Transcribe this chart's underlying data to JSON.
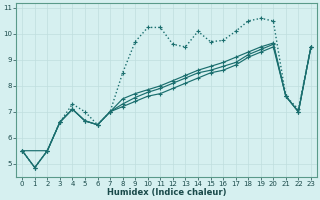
{
  "xlabel": "Humidex (Indice chaleur)",
  "bg_color": "#d6f0f0",
  "line_color": "#1a6e6e",
  "grid_color": "#c0dede",
  "xlim": [
    -0.5,
    23.5
  ],
  "ylim": [
    4.5,
    11.2
  ],
  "xticks": [
    0,
    1,
    2,
    3,
    4,
    5,
    6,
    7,
    8,
    9,
    10,
    11,
    12,
    13,
    14,
    15,
    16,
    17,
    18,
    19,
    20,
    21,
    22,
    23
  ],
  "yticks": [
    5,
    6,
    7,
    8,
    9,
    10,
    11
  ],
  "series": [
    {
      "x": [
        0,
        1,
        2,
        3,
        4,
        5,
        6,
        7,
        8,
        9,
        10,
        11,
        12,
        13,
        14,
        15,
        16,
        17,
        18,
        19,
        20,
        21,
        22,
        23
      ],
      "y": [
        5.5,
        4.85,
        5.5,
        6.6,
        7.3,
        7.0,
        6.5,
        7.0,
        8.5,
        9.7,
        10.25,
        10.25,
        9.6,
        9.5,
        10.1,
        9.7,
        9.75,
        10.1,
        10.5,
        10.6,
        10.5,
        7.6,
        7.1,
        9.5
      ],
      "style": "dotted",
      "linewidth": 1.0
    },
    {
      "x": [
        0,
        1,
        2,
        3,
        4,
        5,
        6,
        7,
        8,
        9,
        10,
        11,
        12,
        13,
        14,
        15,
        16,
        17,
        18,
        19,
        20,
        21,
        22,
        23
      ],
      "y": [
        5.5,
        4.85,
        5.5,
        6.6,
        7.1,
        6.65,
        6.5,
        7.0,
        7.2,
        7.4,
        7.6,
        7.7,
        7.9,
        8.1,
        8.3,
        8.5,
        8.6,
        8.8,
        9.1,
        9.3,
        9.5,
        7.6,
        7.0,
        9.5
      ],
      "style": "solid",
      "linewidth": 0.85
    },
    {
      "x": [
        0,
        1,
        2,
        3,
        4,
        5,
        6,
        7,
        8,
        9,
        10,
        11,
        12,
        13,
        14,
        15,
        16,
        17,
        18,
        19,
        20,
        21,
        22,
        23
      ],
      "y": [
        5.5,
        4.85,
        5.5,
        6.6,
        7.1,
        6.65,
        6.5,
        7.0,
        7.3,
        7.55,
        7.75,
        7.9,
        8.1,
        8.3,
        8.5,
        8.6,
        8.75,
        8.9,
        9.2,
        9.4,
        9.6,
        7.6,
        7.0,
        9.5
      ],
      "style": "solid",
      "linewidth": 0.85
    },
    {
      "x": [
        0,
        2,
        3,
        4,
        5,
        6,
        7,
        8,
        9,
        10,
        11,
        12,
        13,
        14,
        15,
        16,
        17,
        18,
        19,
        20,
        21,
        22,
        23
      ],
      "y": [
        5.5,
        5.5,
        6.6,
        7.1,
        6.65,
        6.5,
        7.0,
        7.5,
        7.7,
        7.85,
        8.0,
        8.2,
        8.4,
        8.6,
        8.75,
        8.9,
        9.1,
        9.3,
        9.5,
        9.65,
        7.6,
        7.0,
        9.5
      ],
      "style": "solid",
      "linewidth": 0.85
    }
  ]
}
